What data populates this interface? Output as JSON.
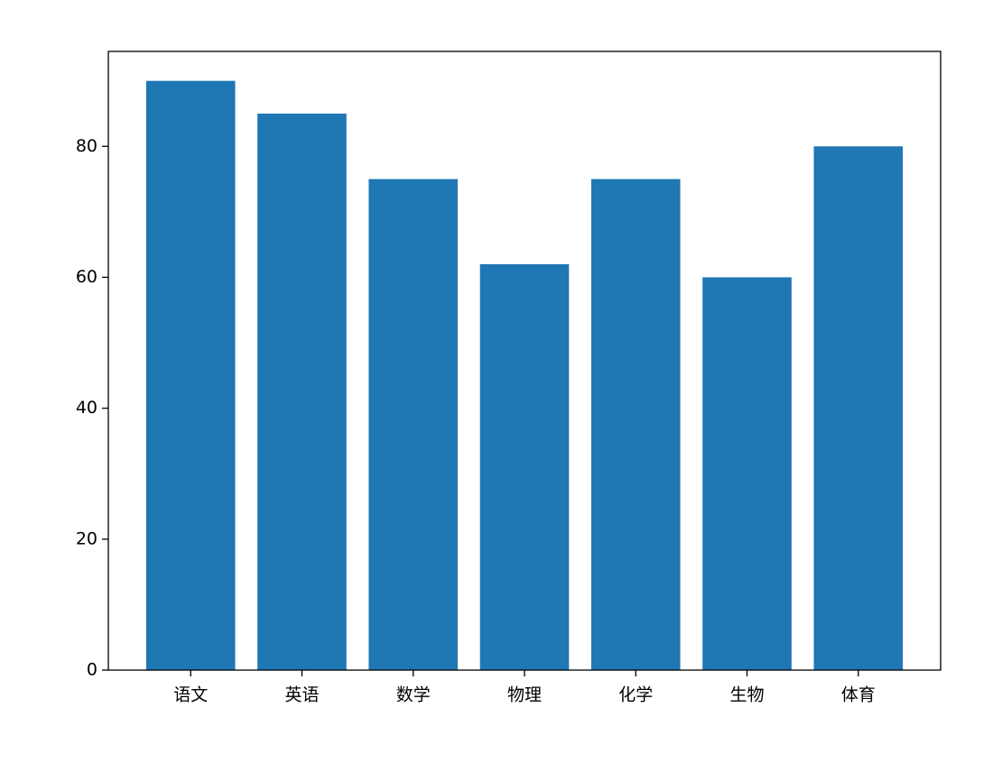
{
  "chart_data": {
    "type": "bar",
    "categories": [
      "语文",
      "英语",
      "数学",
      "物理",
      "化学",
      "生物",
      "体育"
    ],
    "values": [
      90,
      85,
      75,
      62,
      75,
      60,
      80
    ],
    "color": "#1f77b4",
    "ylim": [
      0,
      94.5
    ],
    "yticks": [
      0,
      20,
      40,
      60,
      80
    ],
    "grid": false
  }
}
